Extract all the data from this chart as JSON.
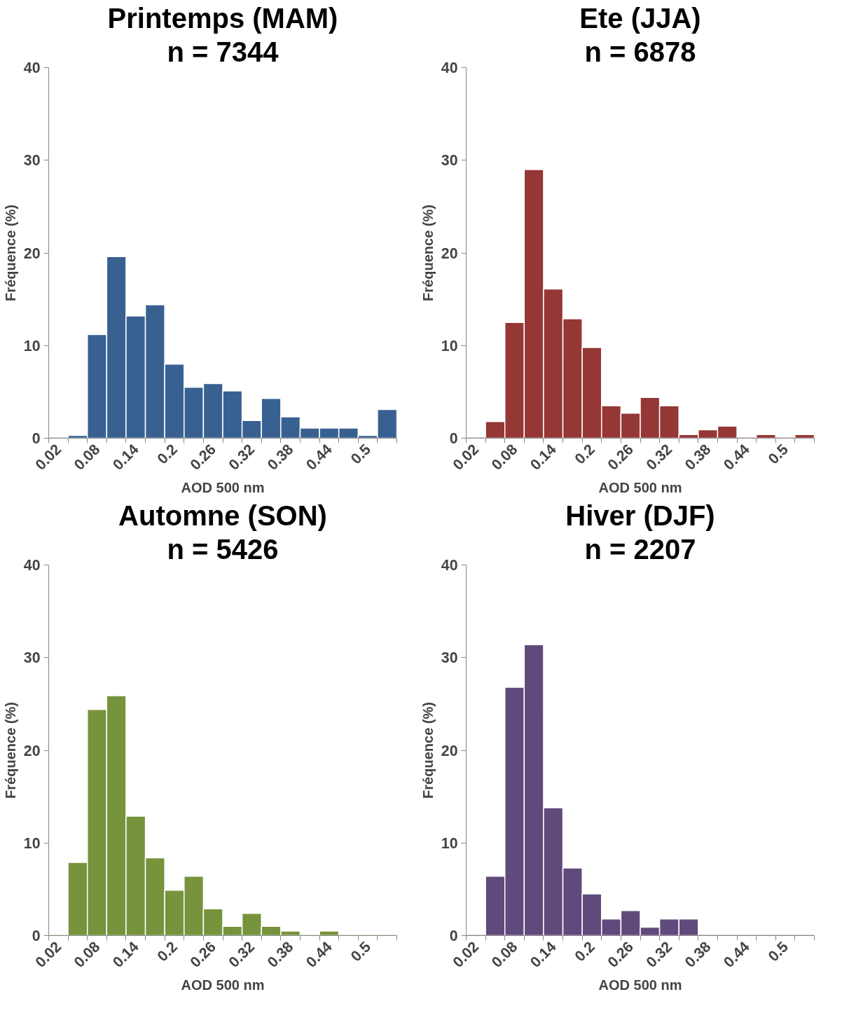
{
  "chart_data": [
    {
      "type": "bar",
      "title": "Printemps (MAM)",
      "subtitle": "n = 7344",
      "xlabel": "AOD 500 nm",
      "ylabel": "Fréquence (%)",
      "categories": [
        "0.02",
        null,
        "0.08",
        null,
        "0.14",
        null,
        "0.2",
        null,
        "0.26",
        null,
        "0.32",
        null,
        "0.38",
        null,
        "0.44",
        null,
        "0.5",
        null
      ],
      "values": [
        0,
        0.3,
        11.2,
        19.6,
        13.2,
        14.4,
        8.0,
        5.5,
        5.9,
        5.1,
        1.9,
        4.3,
        2.3,
        1.1,
        1.1,
        1.1,
        0.3,
        3.1
      ],
      "color": "#386192",
      "ylim": [
        0,
        40
      ],
      "yticks": [
        0,
        10,
        20,
        30,
        40
      ],
      "grid": false,
      "legend": false
    },
    {
      "type": "bar",
      "title": "Ete (JJA)",
      "subtitle": "n = 6878",
      "xlabel": "AOD 500 nm",
      "ylabel": "Fréquence (%)",
      "categories": [
        "0.02",
        null,
        "0.08",
        null,
        "0.14",
        null,
        "0.2",
        null,
        "0.26",
        null,
        "0.32",
        null,
        "0.38",
        null,
        "0.44",
        null,
        "0.5",
        null
      ],
      "values": [
        0,
        1.8,
        12.5,
        29.0,
        16.1,
        12.9,
        9.8,
        3.5,
        2.7,
        4.4,
        3.5,
        0.4,
        0.9,
        1.3,
        0,
        0.4,
        0,
        0.4
      ],
      "color": "#953735",
      "ylim": [
        0,
        40
      ],
      "yticks": [
        0,
        10,
        20,
        30,
        40
      ],
      "grid": false,
      "legend": false
    },
    {
      "type": "bar",
      "title": "Automne (SON)",
      "subtitle": "n = 5426",
      "xlabel": "AOD 500 nm",
      "ylabel": "Fréquence (%)",
      "categories": [
        "0.02",
        null,
        "0.08",
        null,
        "0.14",
        null,
        "0.2",
        null,
        "0.26",
        null,
        "0.32",
        null,
        "0.38",
        null,
        "0.44",
        null,
        "0.5",
        null
      ],
      "values": [
        0,
        7.9,
        24.4,
        25.9,
        12.9,
        8.4,
        4.9,
        6.4,
        2.9,
        1.0,
        2.4,
        1.0,
        0.5,
        0,
        0.5,
        0,
        0,
        0
      ],
      "color": "#77933c",
      "ylim": [
        0,
        40
      ],
      "yticks": [
        0,
        10,
        20,
        30,
        40
      ],
      "grid": false,
      "legend": false
    },
    {
      "type": "bar",
      "title": "Hiver (DJF)",
      "subtitle": "n = 2207",
      "xlabel": "AOD 500 nm",
      "ylabel": "Fréquence (%)",
      "categories": [
        "0.02",
        null,
        "0.08",
        null,
        "0.14",
        null,
        "0.2",
        null,
        "0.26",
        null,
        "0.32",
        null,
        "0.38",
        null,
        "0.44",
        null,
        "0.5",
        null
      ],
      "values": [
        0,
        6.4,
        26.8,
        31.4,
        13.8,
        7.3,
        4.5,
        1.8,
        2.7,
        0.9,
        1.8,
        1.8,
        0,
        0,
        0,
        0,
        0,
        0
      ],
      "color": "#604a7b",
      "ylim": [
        0,
        40
      ],
      "yticks": [
        0,
        10,
        20,
        30,
        40
      ],
      "grid": false,
      "legend": false
    }
  ]
}
